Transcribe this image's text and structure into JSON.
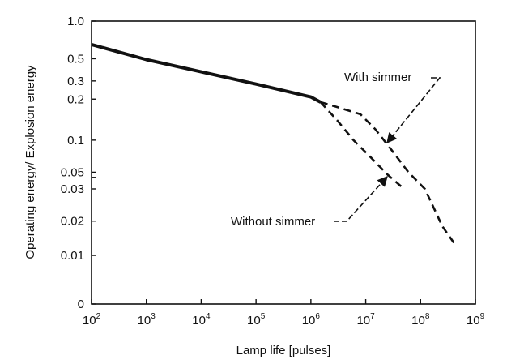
{
  "chart_data": {
    "type": "line",
    "xlabel": "Lamp life [pulses]",
    "ylabel": "Operating energy/ Explosion energy",
    "x_scale": "log",
    "xlim": [
      100,
      1000000000
    ],
    "x_ticks": [
      {
        "base": "10",
        "exp": "2",
        "value": 100
      },
      {
        "base": "10",
        "exp": "3",
        "value": 1000
      },
      {
        "base": "10",
        "exp": "4",
        "value": 10000
      },
      {
        "base": "10",
        "exp": "5",
        "value": 100000
      },
      {
        "base": "10",
        "exp": "6",
        "value": 1000000
      },
      {
        "base": "10",
        "exp": "7",
        "value": 10000000
      },
      {
        "base": "10",
        "exp": "8",
        "value": 100000000
      },
      {
        "base": "10",
        "exp": "9",
        "value": 1000000000
      }
    ],
    "y_ticks": [
      {
        "label": "1.0",
        "value": 1.0,
        "pos": 0.0
      },
      {
        "label": "0.5",
        "value": 0.5,
        "pos": 0.1331
      },
      {
        "label": "0.3",
        "value": 0.3,
        "pos": 0.2116
      },
      {
        "label": "0.2",
        "value": 0.2,
        "pos": 0.2758
      },
      {
        "label": "0.1",
        "value": 0.1,
        "pos": 0.4208
      },
      {
        "label": "0.05",
        "value": 0.05,
        "pos": 0.5342
      },
      {
        "label": "0.03",
        "value": 0.03,
        "pos": 0.5931
      },
      {
        "label": "0.02",
        "value": 0.02,
        "pos": 0.7069
      },
      {
        "label": "0.01",
        "value": 0.01,
        "pos": 0.8282
      },
      {
        "label": "0",
        "value": 0,
        "pos": 1.0
      }
    ],
    "y_minor_ticks": [
      {
        "value": 0.04,
        "pos": 0.5521
      }
    ],
    "grid": false,
    "series": [
      {
        "style": "solid",
        "points": [
          [
            100,
            0.65
          ],
          [
            1000,
            0.49
          ],
          [
            10000,
            0.37
          ],
          [
            100000,
            0.28
          ],
          [
            1000000,
            0.21
          ],
          [
            1500000,
            0.19
          ]
        ]
      },
      {
        "name": "With simmer",
        "style": "dashed",
        "points": [
          [
            1500000,
            0.19
          ],
          [
            3000000,
            0.175
          ],
          [
            8000000,
            0.155
          ],
          [
            15000000,
            0.12
          ],
          [
            30000000,
            0.08
          ],
          [
            60000000,
            0.05
          ],
          [
            120000000,
            0.03
          ],
          [
            250000000,
            0.018
          ],
          [
            450000000,
            0.012
          ]
        ]
      },
      {
        "name": "Without simmer",
        "style": "dashed",
        "points": [
          [
            1500000,
            0.19
          ],
          [
            3000000,
            0.14
          ],
          [
            6000000,
            0.1
          ],
          [
            12000000,
            0.07
          ],
          [
            25000000,
            0.045
          ],
          [
            50000000,
            0.03
          ]
        ]
      }
    ],
    "annotations": [
      {
        "text": "With simmer",
        "target": "With simmer"
      },
      {
        "text": "Without simmer",
        "target": "Without simmer"
      }
    ]
  }
}
